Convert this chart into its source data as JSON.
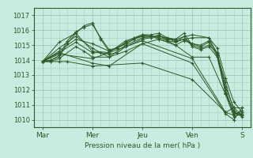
{
  "bg_color": "#c8ece0",
  "grid_color": "#a8ccbc",
  "line_color": "#2d5a27",
  "marker_color": "#2d5a27",
  "xlabel": "Pression niveau de la mer( hPa )",
  "ylim": [
    1009.5,
    1017.3
  ],
  "yticks": [
    1010,
    1011,
    1012,
    1013,
    1014,
    1015,
    1016,
    1017
  ],
  "day_ticks": [
    0,
    24,
    48,
    72,
    96
  ],
  "day_labels": [
    "Mar",
    "Mer",
    "Jeu",
    "Ven",
    "S"
  ],
  "xlim": [
    -1,
    99
  ],
  "series": [
    [
      0,
      1013.9,
      4,
      1014.0,
      8,
      1014.2,
      12,
      1015.1,
      16,
      1015.8,
      20,
      1016.3,
      24,
      1016.5,
      28,
      1015.4,
      32,
      1014.6,
      36,
      1014.8,
      40,
      1015.2,
      44,
      1015.5,
      48,
      1015.7,
      52,
      1015.6,
      56,
      1015.5,
      60,
      1015.4,
      64,
      1015.4,
      68,
      1015.8,
      72,
      1015.0,
      76,
      1014.8,
      80,
      1015.0,
      84,
      1014.5,
      88,
      1012.2,
      92,
      1010.8,
      96,
      1010.3
    ],
    [
      0,
      1013.9,
      4,
      1014.0,
      8,
      1014.3,
      12,
      1015.3,
      16,
      1015.9,
      20,
      1016.2,
      24,
      1016.4,
      28,
      1015.5,
      32,
      1014.7,
      36,
      1014.8,
      40,
      1015.1,
      44,
      1015.4,
      48,
      1015.6,
      52,
      1015.6,
      56,
      1015.4,
      60,
      1015.3,
      64,
      1015.2,
      68,
      1015.6,
      72,
      1014.9,
      76,
      1014.7,
      80,
      1014.9,
      84,
      1014.2,
      88,
      1011.8,
      92,
      1010.5,
      96,
      1010.2
    ],
    [
      0,
      1013.9,
      8,
      1014.8,
      16,
      1015.6,
      24,
      1014.8,
      32,
      1014.2,
      40,
      1015.0,
      48,
      1015.5,
      56,
      1015.6,
      64,
      1015.3,
      72,
      1015.5,
      80,
      1015.5,
      84,
      1014.8,
      88,
      1012.8,
      92,
      1011.2,
      96,
      1010.5
    ],
    [
      0,
      1013.9,
      8,
      1015.2,
      16,
      1015.8,
      24,
      1014.6,
      32,
      1014.5,
      40,
      1015.3,
      48,
      1015.6,
      56,
      1015.6,
      64,
      1015.4,
      72,
      1015.7,
      80,
      1015.5,
      84,
      1014.4,
      88,
      1012.5,
      92,
      1010.6,
      96,
      1010.3
    ],
    [
      0,
      1013.9,
      8,
      1014.6,
      16,
      1015.4,
      24,
      1015.1,
      32,
      1014.6,
      40,
      1015.1,
      48,
      1015.7,
      52,
      1015.7,
      56,
      1015.8,
      60,
      1015.5,
      64,
      1015.2,
      68,
      1015.4,
      72,
      1015.1,
      76,
      1014.9,
      80,
      1015.2,
      84,
      1014.3,
      88,
      1012.0,
      92,
      1010.4,
      96,
      1010.3
    ],
    [
      0,
      1013.9,
      8,
      1014.5,
      16,
      1015.2,
      24,
      1014.5,
      28,
      1014.5,
      32,
      1014.4,
      36,
      1014.5,
      40,
      1014.9,
      48,
      1015.4,
      52,
      1015.5,
      56,
      1015.7,
      60,
      1015.3,
      64,
      1015.0,
      68,
      1015.3,
      72,
      1015.1,
      76,
      1015.0,
      80,
      1015.3,
      84,
      1014.5,
      88,
      1011.8,
      92,
      1010.4,
      96,
      1010.4
    ],
    [
      0,
      1013.9,
      4,
      1013.9,
      8,
      1014.1,
      16,
      1014.9,
      20,
      1014.6,
      24,
      1014.2,
      32,
      1014.2,
      40,
      1014.6,
      48,
      1015.1,
      56,
      1015.4,
      64,
      1015.0,
      72,
      1014.2,
      80,
      1014.2,
      88,
      1011.7,
      92,
      1010.2,
      96,
      1010.4
    ],
    [
      0,
      1013.9,
      8,
      1014.4,
      24,
      1014.1,
      48,
      1015.3,
      72,
      1014.1,
      88,
      1010.5,
      92,
      1010.3,
      96,
      1010.6
    ],
    [
      0,
      1013.9,
      8,
      1014.5,
      24,
      1013.8,
      32,
      1013.6,
      48,
      1015.1,
      72,
      1013.8,
      88,
      1010.4,
      92,
      1010.0,
      96,
      1010.8
    ],
    [
      0,
      1013.9,
      4,
      1013.9,
      8,
      1013.9,
      12,
      1013.9,
      24,
      1013.6,
      48,
      1013.8,
      72,
      1012.7,
      88,
      1010.5,
      92,
      1010.8,
      96,
      1010.8
    ]
  ]
}
